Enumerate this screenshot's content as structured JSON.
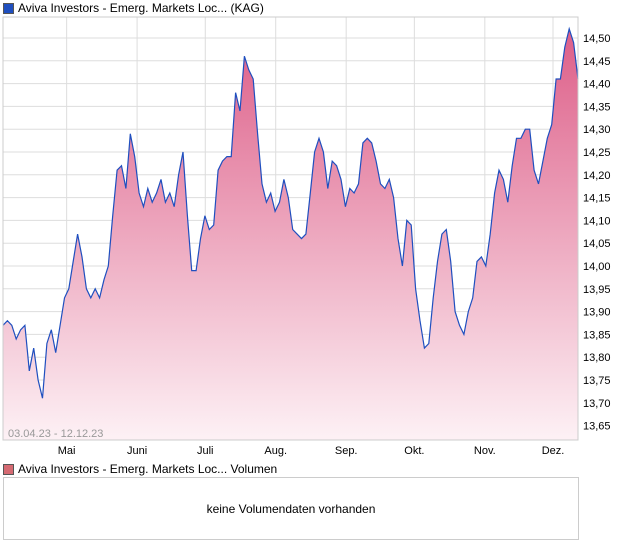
{
  "legend": {
    "main": "Aviva Investors - Emerg. Markets Loc... (KAG)",
    "main_color": "#1f4fbf",
    "volume": "Aviva Investors - Emerg. Markets Loc... Volumen",
    "volume_color": "#d56a72"
  },
  "volume_panel": {
    "message": "keine Volumendaten vorhanden"
  },
  "chart_data": {
    "type": "area",
    "title": "Aviva Investors - Emerg. Markets Loc... (KAG)",
    "date_range_label": "03.04.23 - 12.12.23",
    "x_start": "2023-04-03",
    "x_end": "2023-12-12",
    "x_ticks": [
      {
        "label": "Mai",
        "date": "2023-05-01"
      },
      {
        "label": "Juni",
        "date": "2023-06-01"
      },
      {
        "label": "Juli",
        "date": "2023-07-01"
      },
      {
        "label": "Aug.",
        "date": "2023-08-01"
      },
      {
        "label": "Sep.",
        "date": "2023-09-01"
      },
      {
        "label": "Okt.",
        "date": "2023-10-01"
      },
      {
        "label": "Nov.",
        "date": "2023-11-01"
      },
      {
        "label": "Dez.",
        "date": "2023-12-01"
      }
    ],
    "y_ticks": [
      "14,50",
      "14,45",
      "14,40",
      "14,35",
      "14,30",
      "14,25",
      "14,20",
      "14,15",
      "14,10",
      "14,05",
      "14,00",
      "13,95",
      "13,90",
      "13,85",
      "13,80",
      "13,75",
      "13,70",
      "13,65"
    ],
    "ylim": [
      13.62,
      14.546
    ],
    "grid": true,
    "line_color": "#1f4fbf",
    "values": [
      13.87,
      13.88,
      13.87,
      13.84,
      13.86,
      13.87,
      13.77,
      13.82,
      13.75,
      13.71,
      13.83,
      13.86,
      13.81,
      13.87,
      13.93,
      13.95,
      14.01,
      14.07,
      14.02,
      13.95,
      13.93,
      13.95,
      13.93,
      13.97,
      14.0,
      14.11,
      14.21,
      14.22,
      14.17,
      14.29,
      14.24,
      14.16,
      14.13,
      14.17,
      14.14,
      14.16,
      14.19,
      14.14,
      14.16,
      14.13,
      14.2,
      14.25,
      14.11,
      13.99,
      13.99,
      14.06,
      14.11,
      14.08,
      14.09,
      14.21,
      14.23,
      14.24,
      14.24,
      14.38,
      14.34,
      14.46,
      14.43,
      14.41,
      14.29,
      14.18,
      14.14,
      14.16,
      14.12,
      14.14,
      14.19,
      14.15,
      14.08,
      14.07,
      14.06,
      14.07,
      14.16,
      14.25,
      14.28,
      14.25,
      14.17,
      14.23,
      14.22,
      14.19,
      14.13,
      14.17,
      14.16,
      14.18,
      14.27,
      14.28,
      14.27,
      14.23,
      14.18,
      14.17,
      14.19,
      14.15,
      14.06,
      14.0,
      14.1,
      14.09,
      13.95,
      13.88,
      13.82,
      13.83,
      13.93,
      14.01,
      14.07,
      14.08,
      14.01,
      13.9,
      13.87,
      13.85,
      13.9,
      13.93,
      14.01,
      14.02,
      14.0,
      14.07,
      14.16,
      14.21,
      14.19,
      14.14,
      14.22,
      14.28,
      14.28,
      14.3,
      14.3,
      14.21,
      14.18,
      14.23,
      14.28,
      14.31,
      14.41,
      14.41,
      14.48,
      14.52,
      14.49,
      14.41
    ]
  }
}
